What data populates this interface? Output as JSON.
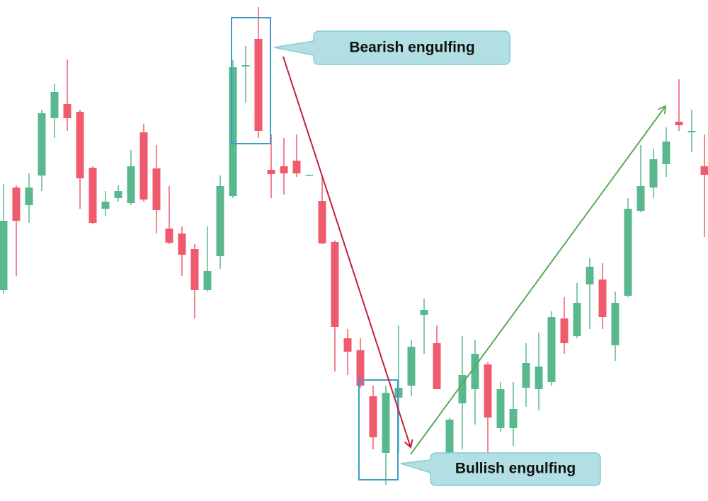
{
  "chart_data": {
    "type": "candlestick",
    "open": [
      298,
      443,
      418,
      460,
      541,
      561,
      550,
      471,
      413,
      428,
      421,
      521,
      470,
      385,
      378,
      356,
      298,
      346,
      431,
      614,
      653,
      468,
      473,
      481,
      460,
      424,
      366,
      230,
      213,
      148,
      68,
      146,
      163,
      263,
      223,
      68,
      138,
      158,
      193,
      103,
      103,
      160,
      158,
      168,
      258,
      233,
      306,
      313,
      220,
      290,
      410,
      443,
      476,
      536,
      521,
      473
    ],
    "high": [
      448,
      446,
      463,
      553,
      590,
      624,
      553,
      473,
      438,
      446,
      496,
      533,
      503,
      445,
      388,
      363,
      388,
      460,
      623,
      643,
      698,
      518,
      513,
      518,
      461,
      458,
      368,
      243,
      230,
      163,
      163,
      248,
      228,
      286,
      248,
      118,
      233,
      228,
      196,
      168,
      168,
      223,
      238,
      268,
      288,
      308,
      343,
      336,
      296,
      428,
      503,
      498,
      528,
      596,
      553,
      518
    ],
    "low": [
      293,
      318,
      393,
      438,
      513,
      523,
      413,
      391,
      403,
      423,
      418,
      423,
      378,
      363,
      318,
      258,
      296,
      328,
      428,
      563,
      513,
      428,
      433,
      458,
      459,
      363,
      183,
      178,
      160,
      73,
      23,
      68,
      148,
      208,
      158,
      63,
      73,
      108,
      68,
      98,
      78,
      133,
      128,
      163,
      208,
      230,
      243,
      243,
      198,
      288,
      408,
      428,
      458,
      523,
      493,
      373
    ],
    "close": [
      396,
      396,
      443,
      548,
      578,
      541,
      456,
      393,
      423,
      438,
      473,
      426,
      411,
      365,
      348,
      298,
      325,
      445,
      613,
      616,
      523,
      462,
      463,
      463,
      461,
      364,
      246,
      211,
      163,
      90,
      153,
      160,
      218,
      270,
      158,
      115,
      178,
      208,
      118,
      158,
      130,
      195,
      190,
      260,
      223,
      280,
      331,
      260,
      280,
      413,
      445,
      483,
      508,
      531,
      523,
      461
    ],
    "up_color": "#5ab88e",
    "down_color": "#ef5b6c",
    "ylim": [
      0,
      708
    ],
    "annotations": [
      {
        "text": "Bearish engulfing"
      },
      {
        "text": "Bullish engulfing"
      }
    ]
  }
}
